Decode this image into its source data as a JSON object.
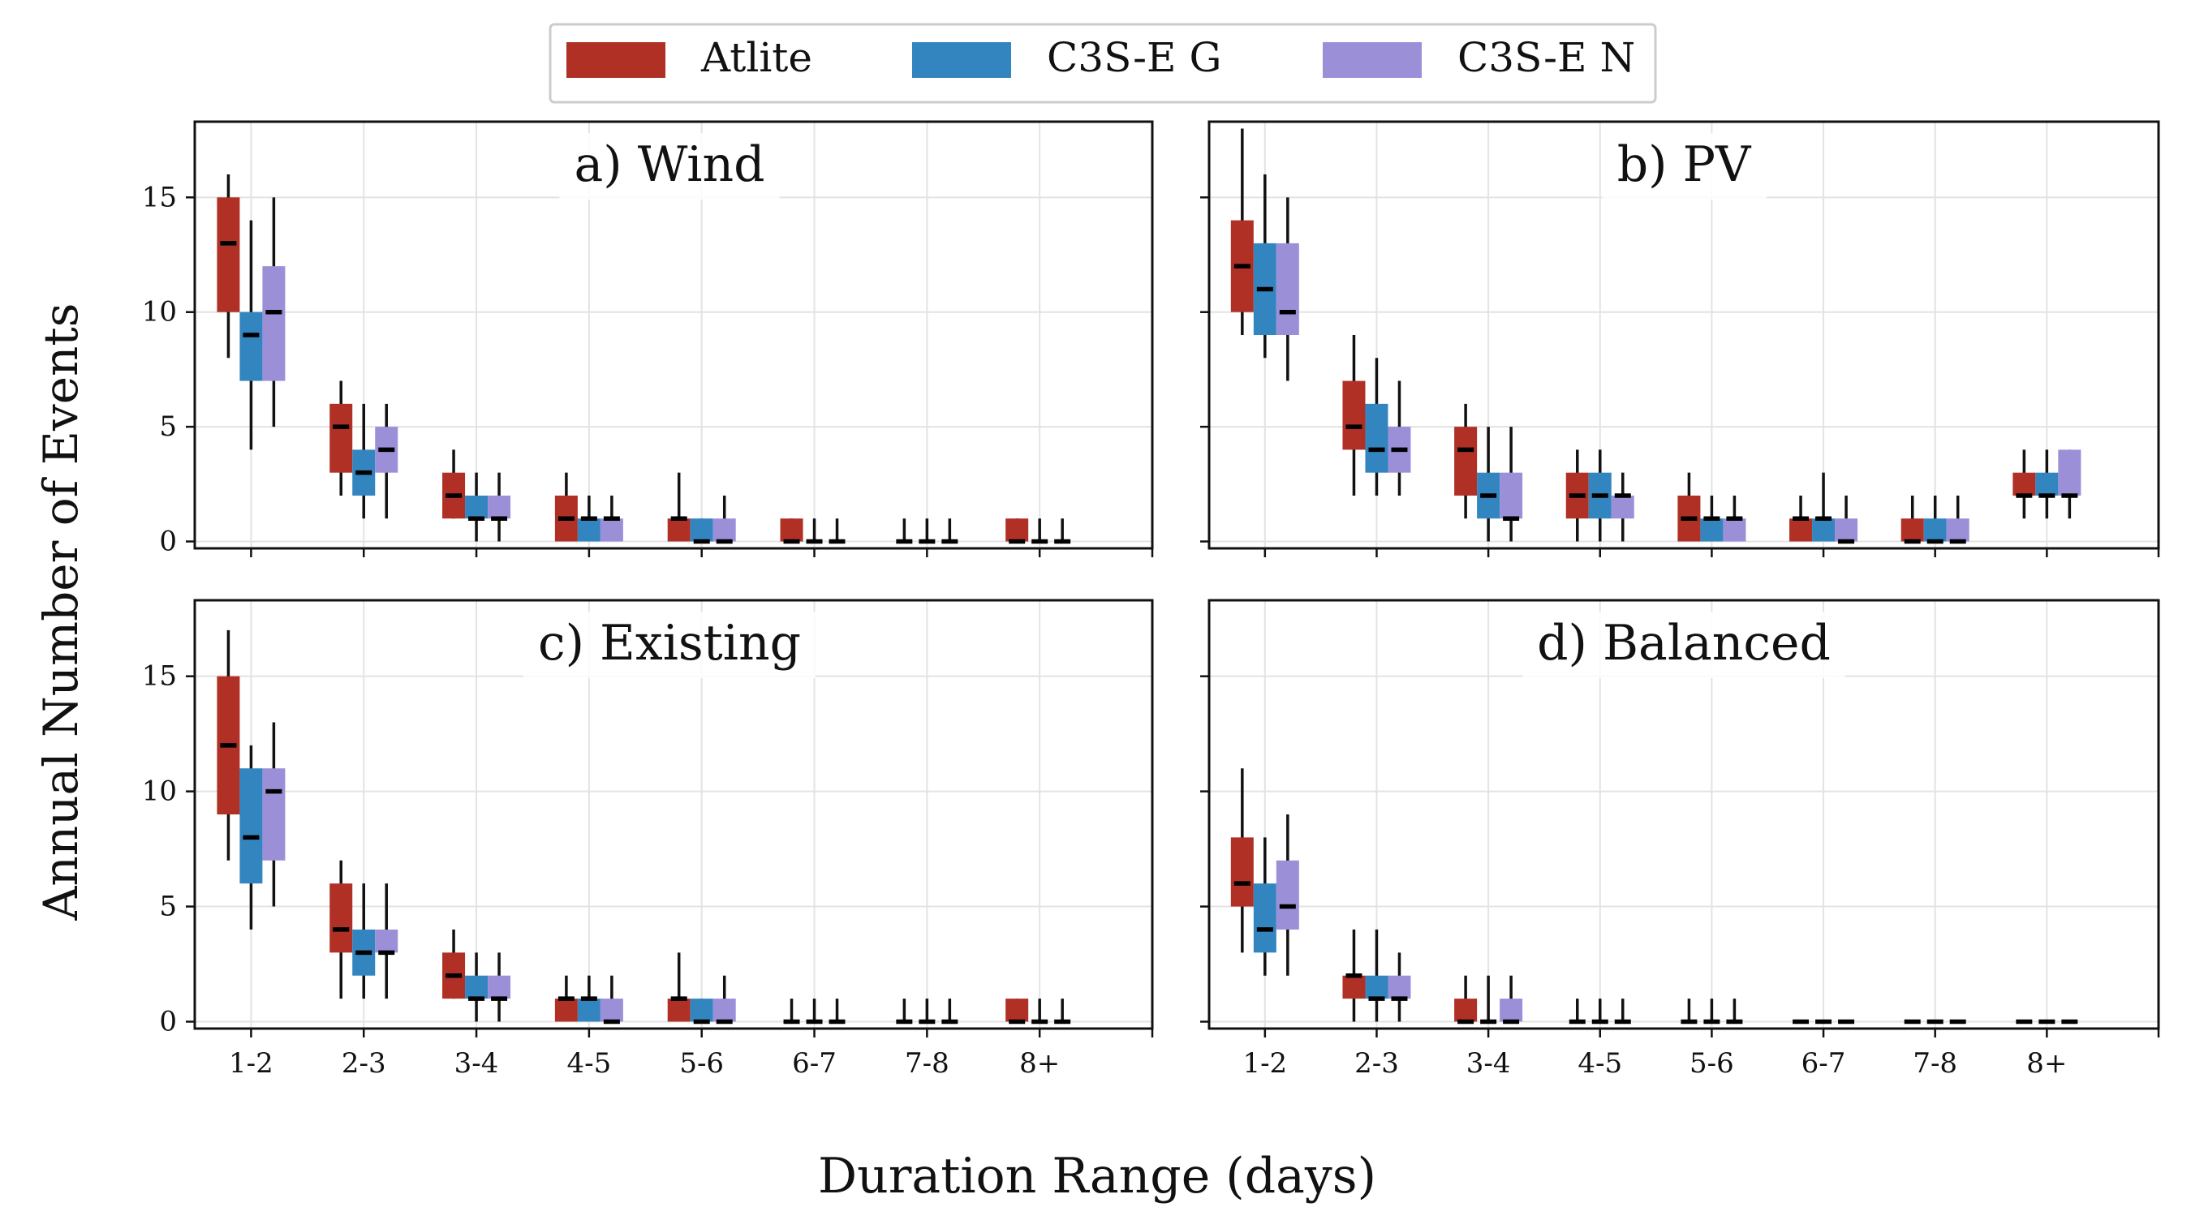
{
  "figure": {
    "ylabel": "Annual Number of Events",
    "xlabel": "Duration Range (days)"
  },
  "legend": {
    "placement": "top-center",
    "entries": [
      {
        "label": "Atlite",
        "color": "#b03025"
      },
      {
        "label": "C3S-E G",
        "color": "#3385c0"
      },
      {
        "label": "C3S-E N",
        "color": "#9b8fd8"
      }
    ]
  },
  "chart_data": [
    {
      "type": "box",
      "title": "a) Wind",
      "categories": [
        "1-2",
        "2-3",
        "3-4",
        "4-5",
        "5-6",
        "6-7",
        "7-8",
        "8+"
      ],
      "ylim": [
        -0.3,
        18.3
      ],
      "yticks": [
        0,
        5,
        10,
        15
      ],
      "grid": true,
      "series": [
        {
          "name": "Atlite",
          "q1": [
            10,
            3,
            1,
            0,
            0,
            0,
            0,
            0
          ],
          "median": [
            13,
            5,
            2,
            1,
            1,
            0,
            0,
            0
          ],
          "q3": [
            15,
            6,
            3,
            2,
            1,
            1,
            0,
            1
          ],
          "wmin": [
            8,
            2,
            1,
            0,
            0,
            0,
            0,
            0
          ],
          "wmax": [
            16,
            7,
            4,
            3,
            3,
            1,
            1,
            1
          ]
        },
        {
          "name": "C3S-E G",
          "q1": [
            7,
            2,
            1,
            0,
            0,
            0,
            0,
            0
          ],
          "median": [
            9,
            3,
            1,
            1,
            0,
            0,
            0,
            0
          ],
          "q3": [
            10,
            4,
            2,
            1,
            1,
            0,
            0,
            0
          ],
          "wmin": [
            4,
            1,
            0,
            0,
            0,
            0,
            0,
            0
          ],
          "wmax": [
            14,
            6,
            3,
            2,
            1,
            1,
            1,
            1
          ]
        },
        {
          "name": "C3S-E N",
          "q1": [
            7,
            3,
            1,
            0,
            0,
            0,
            0,
            0
          ],
          "median": [
            10,
            4,
            1,
            1,
            0,
            0,
            0,
            0
          ],
          "q3": [
            12,
            5,
            2,
            1,
            1,
            0,
            0,
            0
          ],
          "wmin": [
            5,
            1,
            0,
            0,
            0,
            0,
            0,
            0
          ],
          "wmax": [
            15,
            6,
            3,
            2,
            2,
            1,
            1,
            1
          ]
        }
      ]
    },
    {
      "type": "box",
      "title": "b) PV",
      "categories": [
        "1-2",
        "2-3",
        "3-4",
        "4-5",
        "5-6",
        "6-7",
        "7-8",
        "8+"
      ],
      "ylim": [
        -0.3,
        18.3
      ],
      "yticks": [
        0,
        5,
        10,
        15
      ],
      "grid": true,
      "series": [
        {
          "name": "Atlite",
          "q1": [
            10,
            4,
            2,
            1,
            0,
            0,
            0,
            2
          ],
          "median": [
            12,
            5,
            4,
            2,
            1,
            1,
            0,
            2
          ],
          "q3": [
            14,
            7,
            5,
            3,
            2,
            1,
            1,
            3
          ],
          "wmin": [
            9,
            2,
            1,
            0,
            0,
            0,
            0,
            1
          ],
          "wmax": [
            18,
            9,
            6,
            4,
            3,
            2,
            2,
            4
          ]
        },
        {
          "name": "C3S-E G",
          "q1": [
            9,
            3,
            1,
            1,
            0,
            0,
            0,
            2
          ],
          "median": [
            11,
            4,
            2,
            2,
            1,
            1,
            0,
            2
          ],
          "q3": [
            13,
            6,
            3,
            3,
            1,
            1,
            1,
            3
          ],
          "wmin": [
            8,
            2,
            0,
            0,
            0,
            0,
            0,
            1
          ],
          "wmax": [
            16,
            8,
            5,
            4,
            2,
            3,
            2,
            4
          ]
        },
        {
          "name": "C3S-E N",
          "q1": [
            9,
            3,
            1,
            1,
            0,
            0,
            0,
            2
          ],
          "median": [
            10,
            4,
            1,
            2,
            1,
            0,
            0,
            2
          ],
          "q3": [
            13,
            5,
            3,
            2,
            1,
            1,
            1,
            4
          ],
          "wmin": [
            7,
            2,
            0,
            0,
            0,
            0,
            0,
            1
          ],
          "wmax": [
            15,
            7,
            5,
            3,
            2,
            2,
            2,
            4
          ]
        }
      ]
    },
    {
      "type": "box",
      "title": "c) Existing",
      "categories": [
        "1-2",
        "2-3",
        "3-4",
        "4-5",
        "5-6",
        "6-7",
        "7-8",
        "8+"
      ],
      "ylim": [
        -0.3,
        18.3
      ],
      "yticks": [
        0,
        5,
        10,
        15
      ],
      "grid": true,
      "series": [
        {
          "name": "Atlite",
          "q1": [
            9,
            3,
            1,
            0,
            0,
            0,
            0,
            0
          ],
          "median": [
            12,
            4,
            2,
            1,
            1,
            0,
            0,
            0
          ],
          "q3": [
            15,
            6,
            3,
            1,
            1,
            0,
            0,
            1
          ],
          "wmin": [
            7,
            1,
            1,
            0,
            0,
            0,
            0,
            0
          ],
          "wmax": [
            17,
            7,
            4,
            2,
            3,
            1,
            1,
            1
          ]
        },
        {
          "name": "C3S-E G",
          "q1": [
            6,
            2,
            1,
            0,
            0,
            0,
            0,
            0
          ],
          "median": [
            8,
            3,
            1,
            1,
            0,
            0,
            0,
            0
          ],
          "q3": [
            11,
            4,
            2,
            1,
            1,
            0,
            0,
            0
          ],
          "wmin": [
            4,
            1,
            0,
            0,
            0,
            0,
            0,
            0
          ],
          "wmax": [
            12,
            6,
            3,
            2,
            1,
            1,
            1,
            1
          ]
        },
        {
          "name": "C3S-E N",
          "q1": [
            7,
            3,
            1,
            0,
            0,
            0,
            0,
            0
          ],
          "median": [
            10,
            3,
            1,
            0,
            0,
            0,
            0,
            0
          ],
          "q3": [
            11,
            4,
            2,
            1,
            1,
            0,
            0,
            0
          ],
          "wmin": [
            5,
            1,
            0,
            0,
            0,
            0,
            0,
            0
          ],
          "wmax": [
            13,
            6,
            3,
            2,
            2,
            1,
            1,
            1
          ]
        }
      ]
    },
    {
      "type": "box",
      "title": "d) Balanced",
      "categories": [
        "1-2",
        "2-3",
        "3-4",
        "4-5",
        "5-6",
        "6-7",
        "7-8",
        "8+"
      ],
      "ylim": [
        -0.3,
        18.3
      ],
      "yticks": [
        0,
        5,
        10,
        15
      ],
      "grid": true,
      "series": [
        {
          "name": "Atlite",
          "q1": [
            5,
            1,
            0,
            0,
            0,
            0,
            0,
            0
          ],
          "median": [
            6,
            2,
            0,
            0,
            0,
            0,
            0,
            0
          ],
          "q3": [
            8,
            2,
            1,
            0,
            0,
            0,
            0,
            0
          ],
          "wmin": [
            3,
            0,
            0,
            0,
            0,
            0,
            0,
            0
          ],
          "wmax": [
            11,
            4,
            2,
            1,
            1,
            0,
            0,
            0
          ]
        },
        {
          "name": "C3S-E G",
          "q1": [
            3,
            1,
            0,
            0,
            0,
            0,
            0,
            0
          ],
          "median": [
            4,
            1,
            0,
            0,
            0,
            0,
            0,
            0
          ],
          "q3": [
            6,
            2,
            0,
            0,
            0,
            0,
            0,
            0
          ],
          "wmin": [
            2,
            0,
            0,
            0,
            0,
            0,
            0,
            0
          ],
          "wmax": [
            8,
            4,
            2,
            1,
            1,
            0,
            0,
            0
          ]
        },
        {
          "name": "C3S-E N",
          "q1": [
            4,
            1,
            0,
            0,
            0,
            0,
            0,
            0
          ],
          "median": [
            5,
            1,
            0,
            0,
            0,
            0,
            0,
            0
          ],
          "q3": [
            7,
            2,
            1,
            0,
            0,
            0,
            0,
            0
          ],
          "wmin": [
            2,
            0,
            0,
            0,
            0,
            0,
            0,
            0
          ],
          "wmax": [
            9,
            3,
            2,
            1,
            1,
            0,
            0,
            0
          ]
        }
      ]
    }
  ]
}
